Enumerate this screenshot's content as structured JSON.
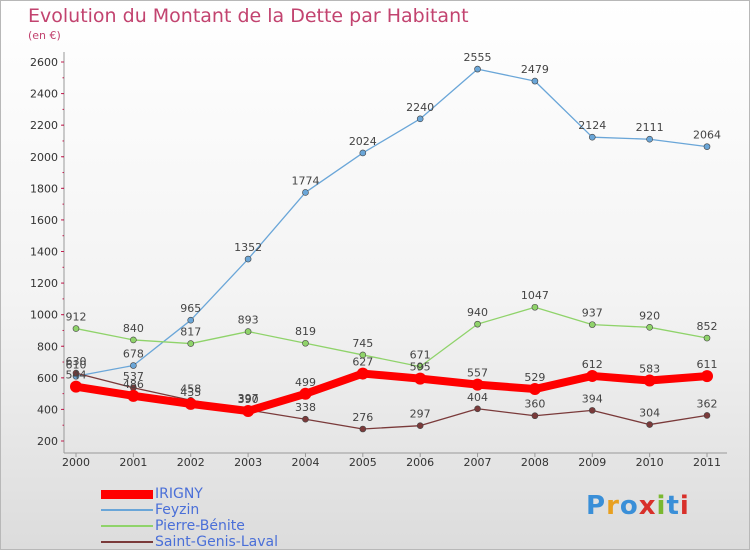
{
  "title": "Evolution du Montant de la Dette par Habitant",
  "subtitle": "(en €)",
  "logo": {
    "text": "Proxiti",
    "colors": [
      "#3a8fd8",
      "#e8a020",
      "#3a8fd8",
      "#d8302a",
      "#7ab830",
      "#3a8fd8",
      "#d8302a"
    ]
  },
  "chart_data": {
    "type": "line",
    "x": [
      "2000",
      "2001",
      "2002",
      "2003",
      "2004",
      "2005",
      "2006",
      "2007",
      "2008",
      "2009",
      "2010",
      "2011"
    ],
    "ylim": [
      200,
      2600
    ],
    "yticks": [
      200,
      400,
      600,
      800,
      1000,
      1200,
      1400,
      1600,
      1800,
      2000,
      2200,
      2400,
      2600
    ],
    "grid": false,
    "legend_position": "bottom-left",
    "series": [
      {
        "name": "IRIGNY",
        "color": "#ff0000",
        "values": [
          544,
          486,
          435,
          390,
          499,
          627,
          595,
          557,
          529,
          612,
          583,
          611
        ]
      },
      {
        "name": "Feyzin",
        "color": "#6aa6d8",
        "values": [
          610,
          678,
          965,
          1352,
          1774,
          2024,
          2240,
          2555,
          2479,
          2124,
          2111,
          2064
        ]
      },
      {
        "name": "Pierre-Bénite",
        "color": "#8fd36a",
        "values": [
          912,
          840,
          817,
          893,
          819,
          745,
          671,
          940,
          1047,
          937,
          920,
          852
        ]
      },
      {
        "name": "Saint-Genis-Laval",
        "color": "#7a3a3a",
        "values": [
          630,
          537,
          458,
          397,
          338,
          276,
          297,
          404,
          360,
          394,
          304,
          362
        ]
      }
    ]
  }
}
